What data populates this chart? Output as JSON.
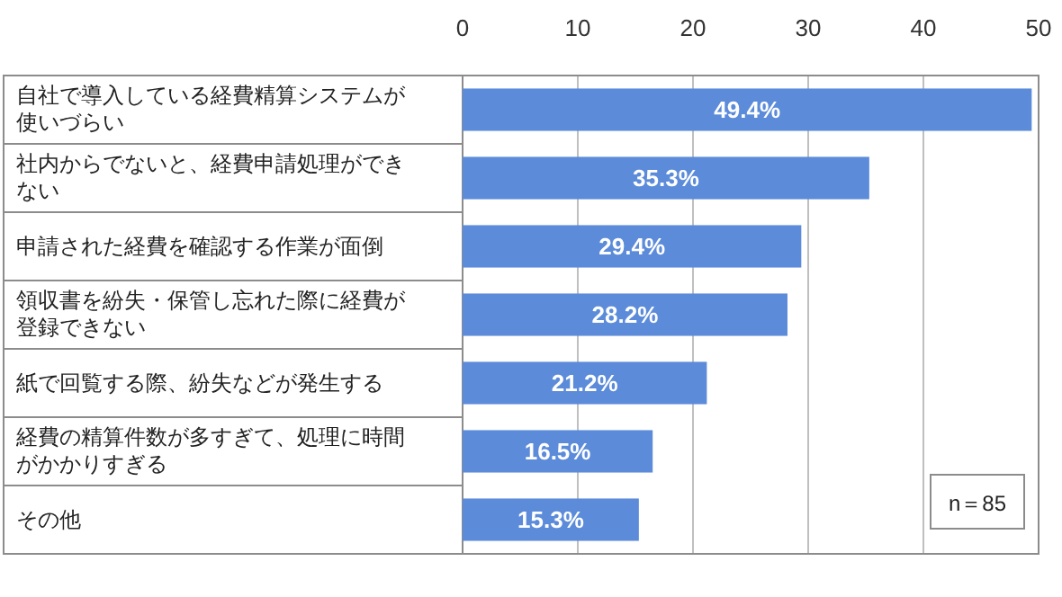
{
  "chart_data": {
    "type": "bar",
    "orientation": "horizontal",
    "categories": [
      "自社で導入している経費精算システムが使いづらい",
      "社内からでないと、経費申請処理ができない",
      "申請された経費を確認する作業が面倒",
      "領収書を紛失・保管し忘れた際に経費が登録できない",
      "紙で回覧する際、紛失などが発生する",
      "経費の精算件数が多すぎて、処理に時間がかかりすぎる",
      "その他"
    ],
    "values": [
      49.4,
      35.3,
      29.4,
      28.2,
      21.2,
      16.5,
      15.3
    ],
    "value_labels": [
      "49.4%",
      "35.3%",
      "29.4%",
      "28.2%",
      "21.2%",
      "16.5%",
      "15.3%"
    ],
    "color": "#5b8bd9",
    "xlim": [
      0,
      50
    ],
    "xticks": [
      0,
      10,
      20,
      30,
      40,
      50
    ],
    "grid": "x",
    "annotations": [
      "n＝85"
    ]
  }
}
